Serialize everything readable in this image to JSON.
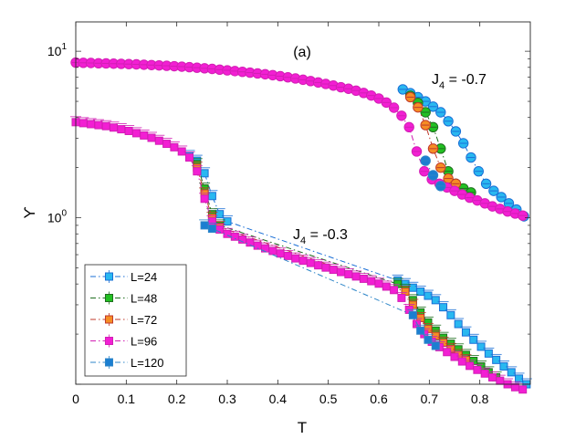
{
  "chart_data": {
    "type": "line",
    "panel_label": "(a)",
    "xlabel": "T",
    "ylabel": "ϒ",
    "xlim": [
      0,
      0.9
    ],
    "ylim": [
      0.1,
      15
    ],
    "yscale": "log",
    "x_ticks": [
      0,
      0.1,
      0.2,
      0.3,
      0.4,
      0.5,
      0.6,
      0.7,
      0.8
    ],
    "x_tick_labels": [
      "0",
      "0.1",
      "0.2",
      "0.3",
      "0.4",
      "0.5",
      "0.6",
      "0.7",
      "0.8"
    ],
    "y_ticks": [
      {
        "value": 10,
        "base": "10",
        "exp": "1"
      },
      {
        "value": 1,
        "base": "10",
        "exp": "0"
      }
    ],
    "legend": {
      "position": "lower-left",
      "entries": [
        {
          "name": "L=24",
          "color": "#1a6fd6",
          "fill": "#29b8f0",
          "marker": "square",
          "dash": "dash-dot"
        },
        {
          "name": "L=48",
          "color": "#1f6e1f",
          "fill": "#22c022",
          "marker": "square",
          "dash": "dash-dot"
        },
        {
          "name": "L=72",
          "color": "#c0392b",
          "fill": "#f58d24",
          "marker": "square",
          "dash": "dash-dot"
        },
        {
          "name": "L=96",
          "color": "#d21fb4",
          "fill": "#f21fd3",
          "marker": "square",
          "dash": "dash-dot"
        },
        {
          "name": "L=120",
          "color": "#2e86c8",
          "fill": "#1b7ed1",
          "marker": "square",
          "dash": "dash-dot"
        }
      ]
    },
    "annotations": [
      {
        "text": "J",
        "sub": "4",
        "rest": " = -0.7",
        "x": 0.72,
        "y": 8.6
      },
      {
        "text": "J",
        "sub": "4",
        "rest": " = -0.3",
        "x": 0.44,
        "y": 0.82
      }
    ],
    "groups": [
      {
        "name": "J4 = -0.7",
        "marker": "circle",
        "series": [
          {
            "name": "L=24",
            "x": [
              0.6475,
              0.6625,
              0.6775,
              0.6925,
              0.7075,
              0.7225,
              0.7375,
              0.7525,
              0.7675,
              0.7825,
              0.7975,
              0.8125,
              0.8275,
              0.8425,
              0.8575,
              0.8725,
              0.8875
            ],
            "y": [
              5.9,
              5.6,
              5.3,
              5.0,
              4.65,
              4.3,
              3.8,
              3.3,
              2.8,
              2.3,
              1.9,
              1.6,
              1.45,
              1.33,
              1.22,
              1.12,
              1.02
            ]
          },
          {
            "name": "L=48",
            "x": [
              0.6625,
              0.6775,
              0.6925,
              0.7075,
              0.7225,
              0.7375,
              0.7525,
              0.7675,
              0.7825
            ],
            "y": [
              5.4,
              4.9,
              4.3,
              3.5,
              2.6,
              1.9,
              1.6,
              1.5,
              1.42
            ]
          },
          {
            "name": "L=72",
            "x": [
              0.6625,
              0.6775,
              0.6925,
              0.7075,
              0.7225,
              0.7375,
              0.7525
            ],
            "y": [
              5.3,
              4.6,
              3.6,
              2.6,
              2.0,
              1.72,
              1.6
            ]
          },
          {
            "name": "L=96",
            "x": [
              0,
              0.015,
              0.03,
              0.045,
              0.06,
              0.075,
              0.09,
              0.105,
              0.12,
              0.135,
              0.15,
              0.165,
              0.18,
              0.195,
              0.21,
              0.225,
              0.24,
              0.255,
              0.27,
              0.285,
              0.3,
              0.315,
              0.33,
              0.345,
              0.36,
              0.375,
              0.39,
              0.405,
              0.42,
              0.435,
              0.45,
              0.465,
              0.48,
              0.495,
              0.51,
              0.525,
              0.54,
              0.555,
              0.57,
              0.585,
              0.6,
              0.615,
              0.63,
              0.645,
              0.66,
              0.675,
              0.69,
              0.705,
              0.72,
              0.735,
              0.75,
              0.765,
              0.78,
              0.795,
              0.81,
              0.825,
              0.84,
              0.855,
              0.87,
              0.885
            ],
            "y": [
              8.55,
              8.52,
              8.5,
              8.47,
              8.45,
              8.42,
              8.4,
              8.37,
              8.34,
              8.3,
              8.26,
              8.22,
              8.18,
              8.13,
              8.08,
              8.02,
              7.96,
              7.9,
              7.83,
              7.75,
              7.68,
              7.6,
              7.52,
              7.44,
              7.36,
              7.27,
              7.18,
              7.08,
              6.97,
              6.86,
              6.74,
              6.62,
              6.49,
              6.36,
              6.22,
              6.08,
              5.95,
              5.8,
              5.62,
              5.42,
              5.2,
              4.92,
              4.58,
              4.1,
              3.5,
              2.5,
              1.9,
              1.7,
              1.6,
              1.52,
              1.45,
              1.38,
              1.32,
              1.27,
              1.22,
              1.17,
              1.13,
              1.09,
              1.06,
              1.03
            ]
          },
          {
            "name": "L=120",
            "x": [
              0.6925,
              0.7075,
              0.7225
            ],
            "y": [
              2.2,
              1.8,
              1.55
            ]
          }
        ]
      },
      {
        "name": "J4 = -0.3",
        "marker": "square",
        "series": [
          {
            "name": "L=24",
            "x": [
              0.225,
              0.24,
              0.255,
              0.27,
              0.285,
              0.3,
              0.6375,
              0.6525,
              0.6675,
              0.6825,
              0.6975,
              0.7125,
              0.7275,
              0.7425,
              0.7575,
              0.7725,
              0.7875,
              0.8025,
              0.8175,
              0.8325,
              0.8475,
              0.8625,
              0.8775,
              0.8925
            ],
            "y": [
              2.35,
              2.2,
              1.85,
              1.35,
              1.05,
              0.95,
              0.42,
              0.4,
              0.38,
              0.36,
              0.34,
              0.32,
              0.29,
              0.26,
              0.23,
              0.205,
              0.185,
              0.168,
              0.153,
              0.14,
              0.128,
              0.118,
              0.108,
              0.1
            ]
          },
          {
            "name": "L=48",
            "x": [
              0.24,
              0.255,
              0.27,
              0.285,
              0.6375,
              0.6525,
              0.6675,
              0.6825,
              0.6975,
              0.7125,
              0.7275,
              0.7425,
              0.7575,
              0.7725,
              0.7875,
              0.8025,
              0.8175,
              0.8325
            ],
            "y": [
              2.1,
              1.5,
              1.05,
              0.9,
              0.4,
              0.37,
              0.32,
              0.27,
              0.235,
              0.21,
              0.19,
              0.175,
              0.162,
              0.15,
              0.138,
              0.128,
              0.118,
              0.11
            ]
          },
          {
            "name": "L=72",
            "x": [
              0.24,
              0.255,
              0.27,
              0.285,
              0.6525,
              0.6675,
              0.6825,
              0.6975,
              0.7125,
              0.7275,
              0.7425,
              0.7575,
              0.7725
            ],
            "y": [
              2.0,
              1.4,
              1.0,
              0.88,
              0.36,
              0.3,
              0.25,
              0.215,
              0.195,
              0.178,
              0.163,
              0.15,
              0.14
            ]
          },
          {
            "name": "L=96",
            "x": [
              0,
              0.015,
              0.03,
              0.045,
              0.06,
              0.075,
              0.09,
              0.105,
              0.12,
              0.135,
              0.15,
              0.165,
              0.18,
              0.195,
              0.21,
              0.225,
              0.24,
              0.255,
              0.27,
              0.285,
              0.3,
              0.315,
              0.33,
              0.345,
              0.36,
              0.375,
              0.39,
              0.405,
              0.42,
              0.435,
              0.45,
              0.465,
              0.48,
              0.495,
              0.51,
              0.525,
              0.54,
              0.555,
              0.57,
              0.585,
              0.6,
              0.615,
              0.63,
              0.645,
              0.66,
              0.675,
              0.69,
              0.705,
              0.72,
              0.735,
              0.75,
              0.765,
              0.78,
              0.795,
              0.81,
              0.825,
              0.84,
              0.855,
              0.87,
              0.885
            ],
            "y": [
              3.75,
              3.7,
              3.65,
              3.6,
              3.55,
              3.48,
              3.4,
              3.32,
              3.22,
              3.12,
              3.02,
              2.9,
              2.78,
              2.65,
              2.5,
              2.3,
              1.9,
              1.3,
              0.95,
              0.85,
              0.8,
              0.77,
              0.74,
              0.71,
              0.68,
              0.655,
              0.632,
              0.61,
              0.59,
              0.57,
              0.552,
              0.535,
              0.518,
              0.502,
              0.487,
              0.472,
              0.458,
              0.444,
              0.43,
              0.416,
              0.402,
              0.386,
              0.368,
              0.33,
              0.28,
              0.23,
              0.2,
              0.18,
              0.167,
              0.156,
              0.146,
              0.137,
              0.129,
              0.122,
              0.116,
              0.11,
              0.105,
              0.1,
              0.096,
              0.093
            ]
          },
          {
            "name": "L=120",
            "x": [
              0.255,
              0.27,
              0.6675,
              0.6825,
              0.6975,
              0.7125
            ],
            "y": [
              0.9,
              0.86,
              0.26,
              0.21,
              0.185,
              0.17
            ]
          }
        ]
      }
    ]
  }
}
